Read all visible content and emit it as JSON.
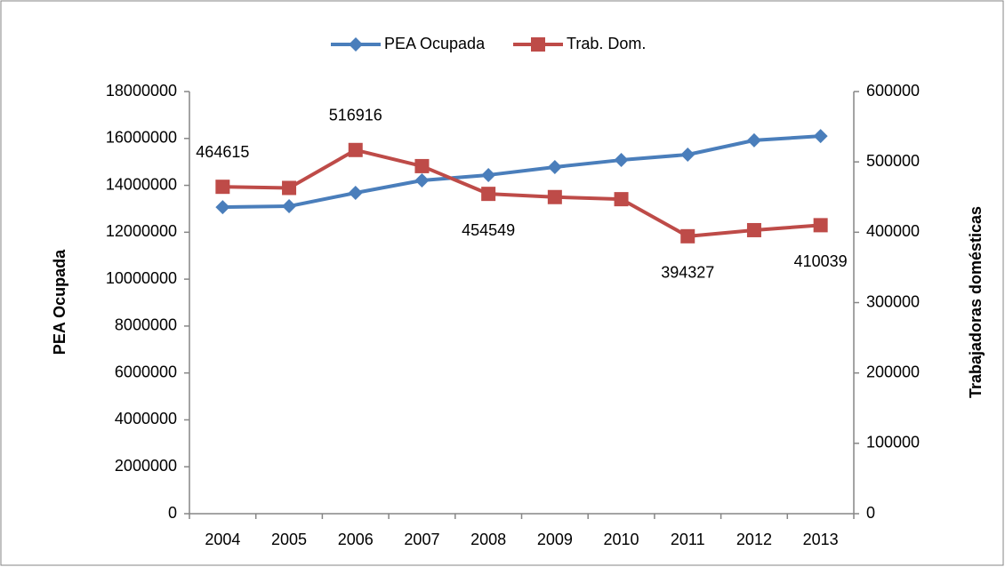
{
  "chart_data": {
    "type": "line",
    "categories": [
      "2004",
      "2005",
      "2006",
      "2007",
      "2008",
      "2009",
      "2010",
      "2011",
      "2012",
      "2013"
    ],
    "series": [
      {
        "name": "PEA Ocupada",
        "color": "#4a7ebb",
        "marker": "diamond",
        "axis": "y",
        "values": [
          13070000,
          13110000,
          13680000,
          14210000,
          14440000,
          14780000,
          15080000,
          15310000,
          15920000,
          16100000
        ]
      },
      {
        "name": "Trab. Dom.",
        "color": "#be4b48",
        "marker": "square",
        "axis": "y2",
        "values": [
          464615,
          463000,
          516916,
          494000,
          454549,
          450000,
          447000,
          394327,
          403000,
          410039
        ],
        "value_labels": [
          "464615",
          null,
          "516916",
          null,
          "454549",
          null,
          null,
          "394327",
          null,
          "410039"
        ]
      }
    ],
    "ylabel": "PEA Ocupada",
    "y2label": "Trabajadoras domésticas",
    "ylim": [
      0,
      18000000
    ],
    "yticks": [
      0,
      2000000,
      4000000,
      6000000,
      8000000,
      10000000,
      12000000,
      14000000,
      16000000,
      18000000
    ],
    "y2lim": [
      0,
      600000
    ],
    "y2ticks": [
      0,
      100000,
      200000,
      300000,
      400000,
      500000,
      600000
    ],
    "legend": "top",
    "grid": false
  }
}
